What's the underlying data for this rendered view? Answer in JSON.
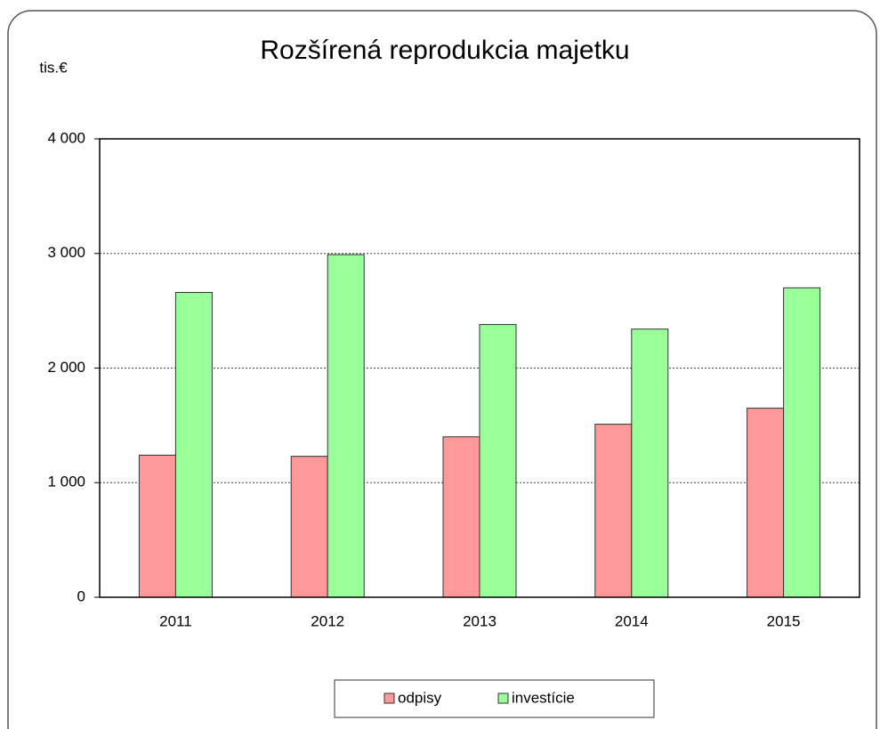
{
  "chart_data": {
    "type": "bar",
    "title": "Rozšírená reprodukcia majetku",
    "y_label": "tis.€",
    "categories": [
      "2011",
      "2012",
      "2013",
      "2014",
      "2015"
    ],
    "series": [
      {
        "name": "odpisy",
        "color": "#ff9999",
        "values": [
          1240,
          1230,
          1400,
          1510,
          1650
        ]
      },
      {
        "name": "investície",
        "color": "#99ff99",
        "values": [
          2660,
          2990,
          2380,
          2340,
          2700
        ]
      }
    ],
    "ylim": [
      0,
      4000
    ],
    "yticks": [
      0,
      {
        "value": 1000,
        "label": "1 000"
      },
      {
        "value": 2000,
        "label": "2 000"
      },
      {
        "value": 3000,
        "label": "3 000"
      },
      {
        "value": 4000,
        "label": "4 000"
      }
    ],
    "grid": true,
    "legend": "bottom"
  }
}
